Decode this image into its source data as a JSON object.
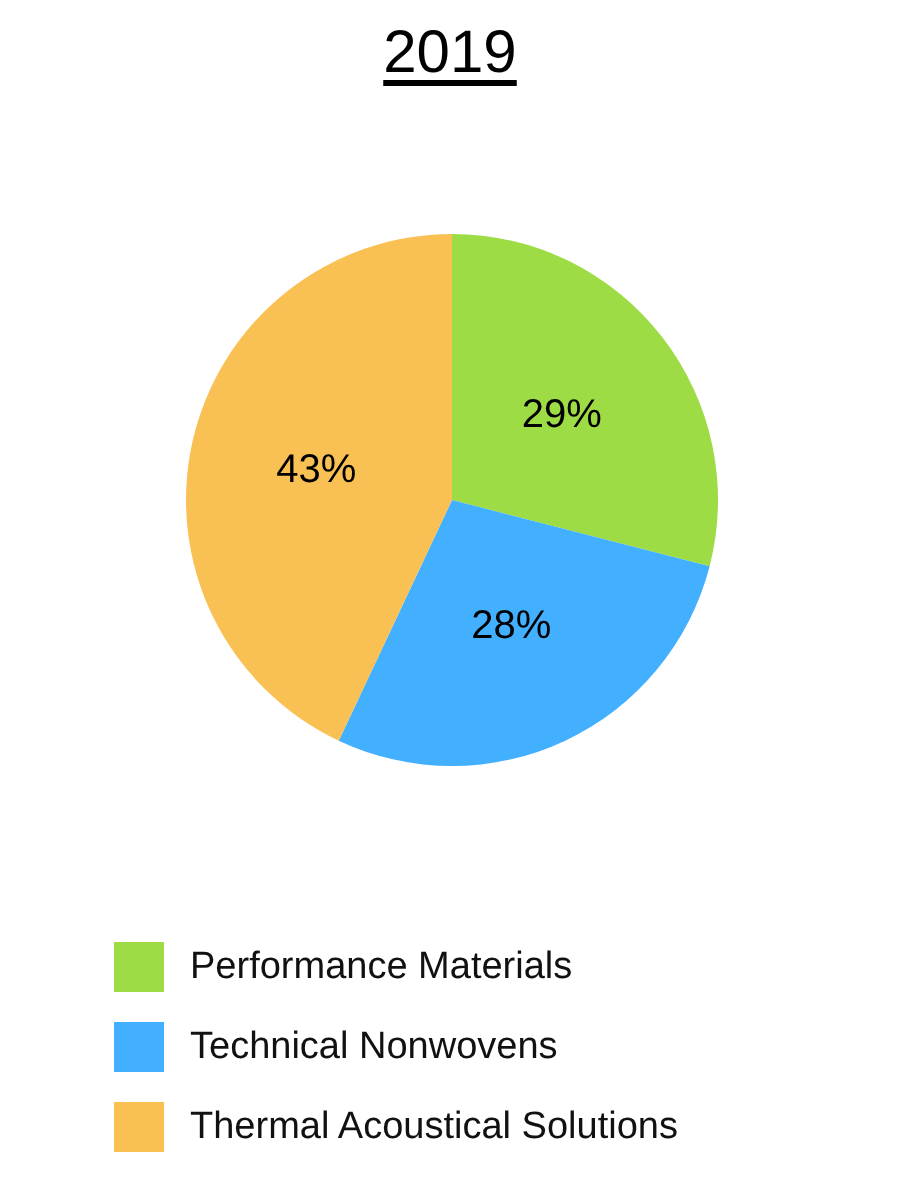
{
  "chart_data": {
    "type": "pie",
    "title": "2019",
    "categories": [
      "Performance Materials",
      "Technical Nonwovens",
      "Thermal Acoustical Solutions"
    ],
    "values": [
      29,
      28,
      43
    ],
    "colors": [
      "#9edc46",
      "#42afff",
      "#f9c154"
    ],
    "value_labels": [
      "29%",
      "28%",
      "43%"
    ],
    "legend": "bottom"
  }
}
